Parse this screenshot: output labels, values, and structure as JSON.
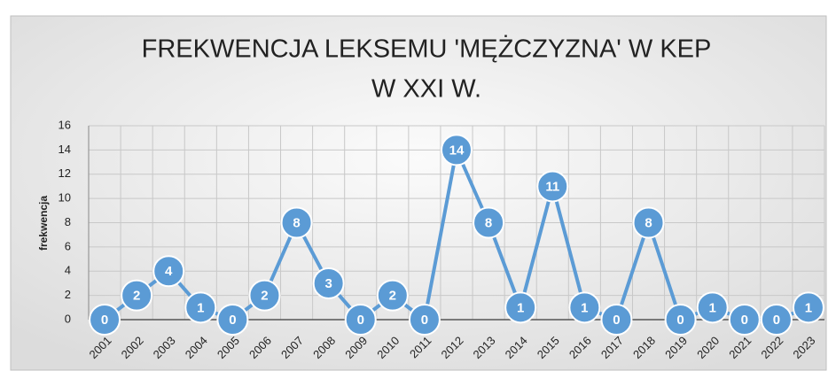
{
  "chart_data": {
    "type": "line",
    "title": [
      "FREKWENCJA LEKSEMU 'MĘŻCZYZNA' W KEP",
      "W XXI W."
    ],
    "y_label": "frekwencja",
    "categories": [
      "2001",
      "2002",
      "2003",
      "2004",
      "2005",
      "2006",
      "2007",
      "2008",
      "2009",
      "2010",
      "2011",
      "2012",
      "2013",
      "2014",
      "2015",
      "2016",
      "2017",
      "2018",
      "2019",
      "2020",
      "2021",
      "2022",
      "2023"
    ],
    "values": [
      0,
      2,
      4,
      1,
      0,
      2,
      8,
      3,
      0,
      2,
      0,
      14,
      8,
      1,
      11,
      1,
      0,
      8,
      0,
      1,
      0,
      0,
      1
    ],
    "color": "#5b9bd5",
    "ylim": [
      0,
      16
    ],
    "yticks": [
      0,
      2,
      4,
      6,
      8,
      10,
      12,
      14,
      16
    ],
    "grid": true
  }
}
